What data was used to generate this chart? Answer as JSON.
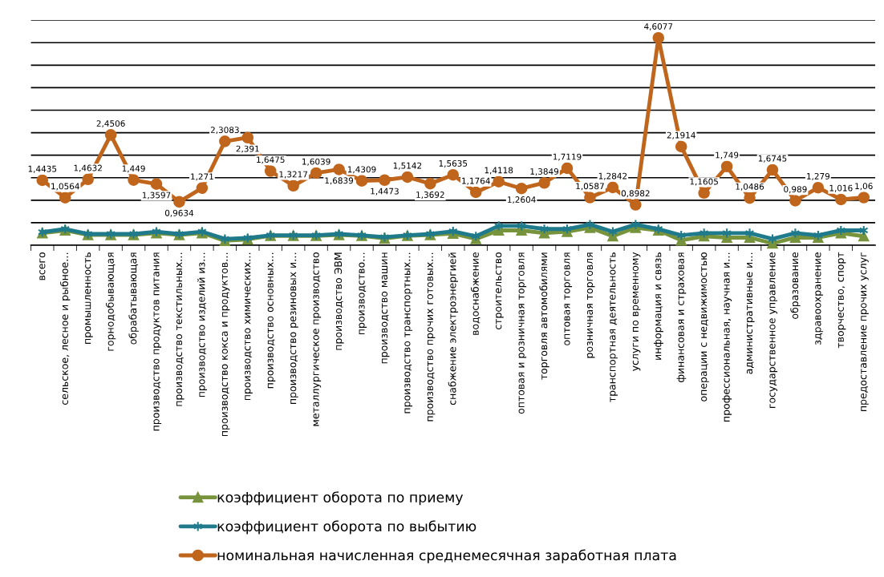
{
  "chart_data": {
    "type": "line",
    "categories": [
      "всего",
      "сельское, лесное и рыбное…",
      "промышленность",
      "горнодобывающая",
      "обрабатывающая",
      "производство продуктов питания",
      "производство текстильных…",
      "производство изделий из…",
      "производство кокса и продуктов…",
      "производство химических…",
      "производство основных…",
      "производство резиновых и…",
      "металлургическое производство",
      "производство ЭВМ",
      "производство…",
      "производство машин",
      "производство транспортных…",
      "производство прочих готовых…",
      "снабжение электроэнергией",
      "водоснабжение",
      "строительство",
      "оптовая и розничная торговля",
      "торговля автомобилями",
      "оптовая торговля",
      "розничная торговля",
      "транспортная деятельность",
      "услуги по временному",
      "информация и связь",
      "финансовая и страховая",
      "операции с недвижимостью",
      "профессиональная, научная и…",
      "административные и…",
      "государственное управление",
      "образование",
      "здравоохранение",
      "творчество, спорт",
      "предоставление прочих услуг"
    ],
    "series": [
      {
        "name": "коэффициент оборота по приему",
        "color": "#77933c",
        "marker": "triangle",
        "values": [
          0.27,
          0.33,
          0.23,
          0.23,
          0.23,
          0.27,
          0.23,
          0.27,
          0.1,
          0.13,
          0.21,
          0.21,
          0.21,
          0.23,
          0.21,
          0.15,
          0.21,
          0.23,
          0.26,
          0.14,
          0.33,
          0.33,
          0.27,
          0.3,
          0.39,
          0.2,
          0.39,
          0.33,
          0.11,
          0.2,
          0.17,
          0.17,
          0.04,
          0.17,
          0.17,
          0.27,
          0.2
        ]
      },
      {
        "name": "коэффициент оборота по выбытию",
        "color": "#1f7a8c",
        "marker": "cross",
        "values": [
          0.29,
          0.36,
          0.25,
          0.25,
          0.25,
          0.3,
          0.25,
          0.3,
          0.14,
          0.16,
          0.22,
          0.22,
          0.22,
          0.25,
          0.22,
          0.18,
          0.22,
          0.25,
          0.31,
          0.2,
          0.43,
          0.43,
          0.36,
          0.36,
          0.46,
          0.3,
          0.46,
          0.36,
          0.22,
          0.27,
          0.27,
          0.27,
          0.14,
          0.27,
          0.22,
          0.33,
          0.33
        ]
      },
      {
        "name": "номинальная начисленная среднемесячная заработная плата",
        "color": "#c0651c",
        "marker": "circle",
        "values": [
          1.4435,
          1.0564,
          1.4632,
          2.4506,
          1.449,
          1.3597,
          0.9634,
          1.271,
          2.3083,
          2.391,
          1.6475,
          1.3217,
          1.6039,
          1.6839,
          1.4309,
          1.4473,
          1.5142,
          1.3692,
          1.5635,
          1.1764,
          1.4118,
          1.2604,
          1.3849,
          1.7119,
          1.0587,
          1.2842,
          0.8982,
          4.6077,
          2.1914,
          1.1605,
          1.749,
          1.0486,
          1.6745,
          0.989,
          1.279,
          1.016,
          1.06
        ],
        "value_labels": [
          "1,4435",
          "1,0564",
          "1,4632",
          "2,4506",
          "1,449",
          "1,3597",
          "0,9634",
          "1,271",
          "2,3083",
          "2,391",
          "1,6475",
          "1,3217",
          "1,6039",
          "1,6839",
          "1,4309",
          "1,4473",
          "1,5142",
          "1,3692",
          "1,5635",
          "1,1764",
          "1,4118",
          "1,2604",
          "1,3849",
          "1,7119",
          "1,0587",
          "1,2842",
          "0,8982",
          "4,6077",
          "2,1914",
          "1,1605",
          "1,749",
          "1,0486",
          "1,6745",
          "0,989",
          "1,279",
          "1,016",
          "1,06"
        ]
      }
    ],
    "ylim": [
      0,
      5
    ],
    "yticks": [
      {
        "value": 0,
        "label": null
      },
      {
        "value": 0.5,
        "label": null
      },
      {
        "value": 1,
        "label": null
      },
      {
        "value": 1.5,
        "label": null
      },
      {
        "value": 2,
        "label": null
      },
      {
        "value": 2.5,
        "label": null
      },
      {
        "value": 3,
        "label": null
      },
      {
        "value": 3.5,
        "label": null
      },
      {
        "value": 4,
        "label": null
      },
      {
        "value": 4.5,
        "label": null
      },
      {
        "value": 5,
        "label": null
      }
    ],
    "tick_labels": "x",
    "grid": "y",
    "legend": "bottom",
    "line_style": "solid"
  }
}
